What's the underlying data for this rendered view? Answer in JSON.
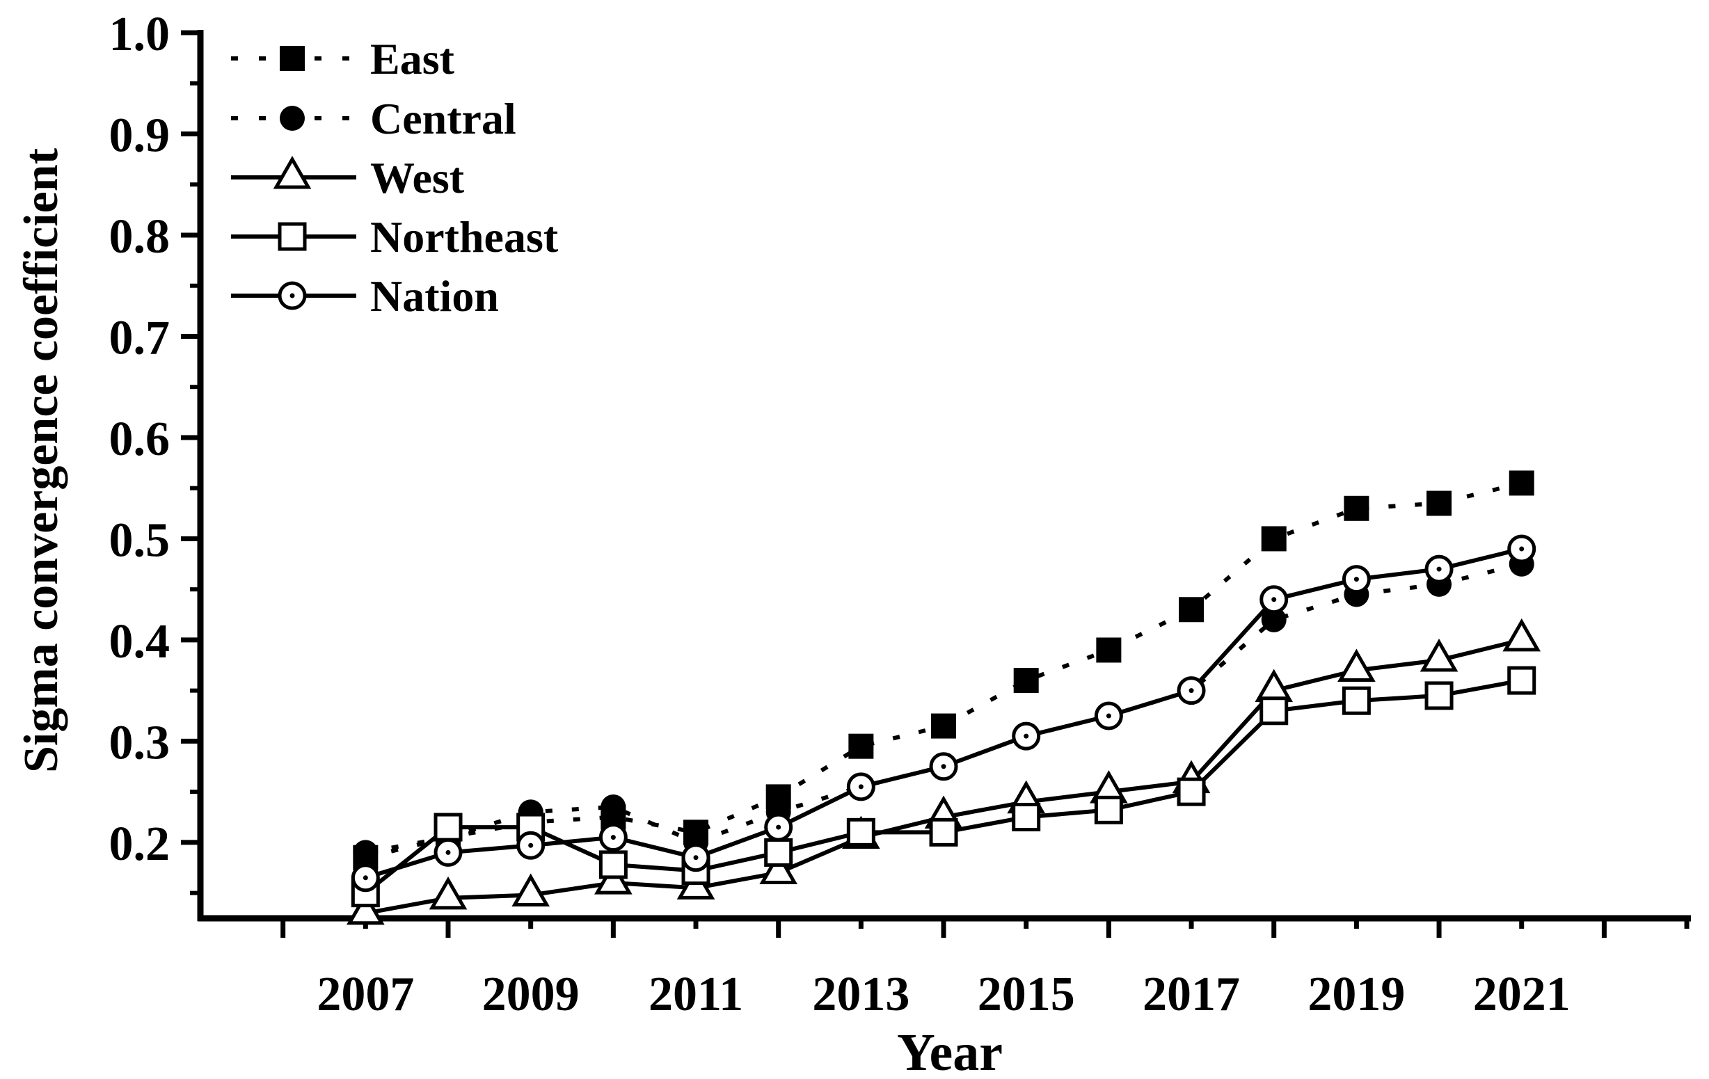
{
  "chart_data": {
    "type": "line",
    "title": "",
    "xlabel": "Year",
    "ylabel": "Sigma convergence coefficient",
    "background_color": "#ffffff",
    "foreground_color": "#000000",
    "grid": false,
    "legend_position": "top-left",
    "x": [
      2007,
      2008,
      2009,
      2010,
      2011,
      2012,
      2013,
      2014,
      2015,
      2016,
      2017,
      2018,
      2019,
      2020,
      2021
    ],
    "x_tick_label_years": [
      2007,
      2009,
      2011,
      2013,
      2015,
      2017,
      2019,
      2021
    ],
    "x_all_tick_years": [
      2006,
      2007,
      2008,
      2009,
      2010,
      2011,
      2012,
      2013,
      2014,
      2015,
      2016,
      2017,
      2018,
      2019,
      2020,
      2021,
      2022,
      2023
    ],
    "xlim_years": [
      2005.0,
      2023.05
    ],
    "y_major_ticks": [
      0.2,
      0.3,
      0.4,
      0.5,
      0.6,
      0.7,
      0.8,
      0.9,
      1.0
    ],
    "y_tick_labels": [
      "0.2",
      "0.3",
      "0.4",
      "0.5",
      "0.6",
      "0.7",
      "0.8",
      "0.9",
      "1.0"
    ],
    "y_minor_ticks": [
      0.15,
      0.25,
      0.35,
      0.45,
      0.55,
      0.65,
      0.75,
      0.85,
      0.95
    ],
    "ylim": [
      0.125,
      1.0
    ],
    "series": [
      {
        "name": "East",
        "line_style": "dotted",
        "marker": "filled-square",
        "values": [
          0.185,
          0.205,
          0.22,
          0.225,
          0.21,
          0.245,
          0.295,
          0.315,
          0.36,
          0.39,
          0.43,
          0.5,
          0.53,
          0.535,
          0.555
        ]
      },
      {
        "name": "Central",
        "line_style": "dotted",
        "marker": "filled-circle",
        "values": [
          0.19,
          0.205,
          0.23,
          0.235,
          0.2,
          0.23,
          0.255,
          0.275,
          0.305,
          0.325,
          0.35,
          0.42,
          0.445,
          0.455,
          0.475
        ]
      },
      {
        "name": "West",
        "line_style": "solid",
        "marker": "open-triangle",
        "values": [
          0.13,
          0.145,
          0.148,
          0.16,
          0.155,
          0.17,
          0.205,
          0.225,
          0.24,
          0.25,
          0.26,
          0.35,
          0.37,
          0.38,
          0.4
        ]
      },
      {
        "name": "Northeast",
        "line_style": "solid",
        "marker": "open-square",
        "values": [
          0.15,
          0.215,
          0.215,
          0.178,
          0.172,
          0.19,
          0.21,
          0.21,
          0.225,
          0.232,
          0.25,
          0.33,
          0.34,
          0.345,
          0.36
        ]
      },
      {
        "name": "Nation",
        "line_style": "solid",
        "marker": "open-circle-dot",
        "values": [
          0.165,
          0.19,
          0.197,
          0.205,
          0.185,
          0.215,
          0.255,
          0.275,
          0.305,
          0.325,
          0.35,
          0.44,
          0.46,
          0.47,
          0.49
        ]
      }
    ]
  }
}
